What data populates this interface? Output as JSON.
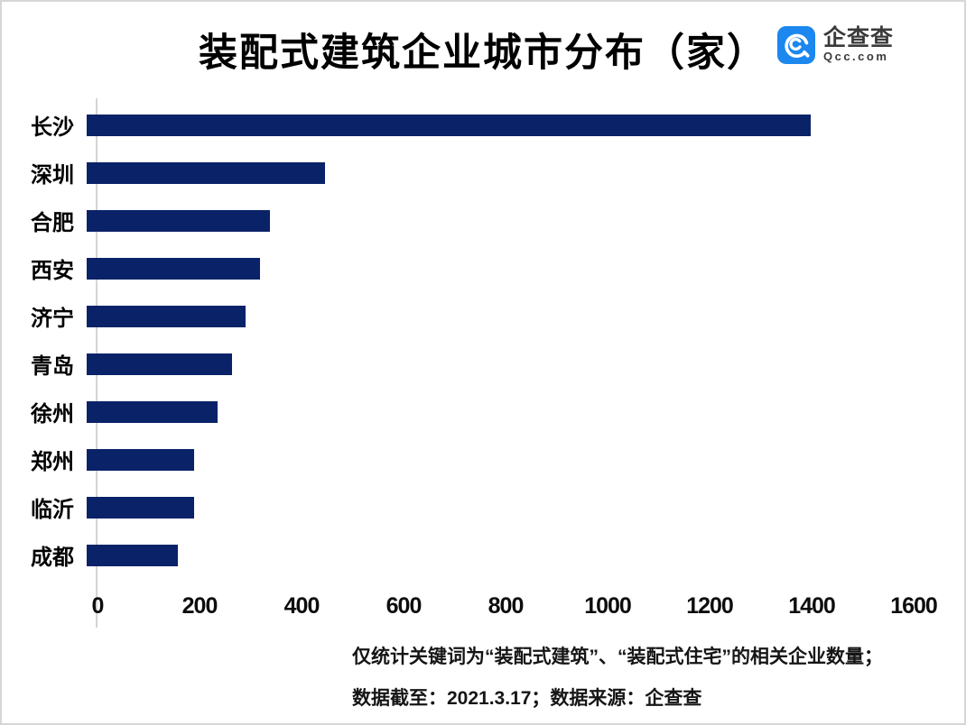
{
  "title": "装配式建筑企业城市分布（家）",
  "logo": {
    "icon": "qcc-logo-icon",
    "name": "企查查",
    "domain": "Qcc.com"
  },
  "colors": {
    "bar": "#0a2268",
    "logo_blue": "#1b87ef",
    "axis_line": "#d4d4d4",
    "frame_border": "#d6d6d6"
  },
  "chart_data": {
    "type": "bar",
    "orientation": "horizontal",
    "title": "装配式建筑企业城市分布（家）",
    "categories": [
      "长沙",
      "深圳",
      "合肥",
      "西安",
      "济宁",
      "青岛",
      "徐州",
      "郑州",
      "临沂",
      "成都"
    ],
    "values": [
      1420,
      468,
      360,
      340,
      312,
      285,
      257,
      210,
      210,
      179
    ],
    "xlabel": "",
    "ylabel": "",
    "xlim": [
      0,
      1600
    ],
    "xticks": [
      0,
      200,
      400,
      600,
      800,
      1000,
      1200,
      1400,
      1600
    ],
    "grid": false,
    "legend": false
  },
  "footnotes": {
    "line1": "仅统计关键词为“装配式建筑”、“装配式住宅”的相关企业数量；",
    "line2": "数据截至：2021.3.17；数据来源：企查查"
  }
}
